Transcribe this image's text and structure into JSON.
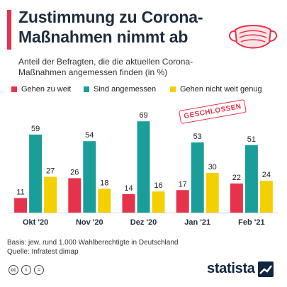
{
  "header": {
    "title": "Zustimmung zu Corona-Maßnahmen nimmt ab",
    "subtitle": "Anteil der Befragten, die die aktuellen Corona-Maßnahmen angemessen finden (in %)"
  },
  "stamp_text": "GESCHLOSSEN",
  "footer": {
    "basis": "Basis: jew. rund 1.000 Wahlberechtigte in Deutschland",
    "quelle": "Quelle: Infratest dimap",
    "logo": "statista"
  },
  "colors": {
    "accent": "#e6324b",
    "teal": "#1a9e9a",
    "yellow": "#f5d000",
    "dark": "#1f2d3d"
  },
  "chart_data": {
    "type": "bar",
    "categories": [
      "Okt '20",
      "Nov '20",
      "Dez '20",
      "Jan '21",
      "Feb '21"
    ],
    "series": [
      {
        "name": "Gehen zu weit",
        "values": [
          11,
          26,
          14,
          17,
          22
        ],
        "color": "#e6324b"
      },
      {
        "name": "Sind angemessen",
        "values": [
          59,
          54,
          69,
          53,
          51
        ],
        "color": "#1a9e9a"
      },
      {
        "name": "Gehen nicht weit genug",
        "values": [
          27,
          18,
          16,
          30,
          24
        ],
        "color": "#f5d000"
      }
    ],
    "ylim": [
      0,
      75
    ]
  }
}
